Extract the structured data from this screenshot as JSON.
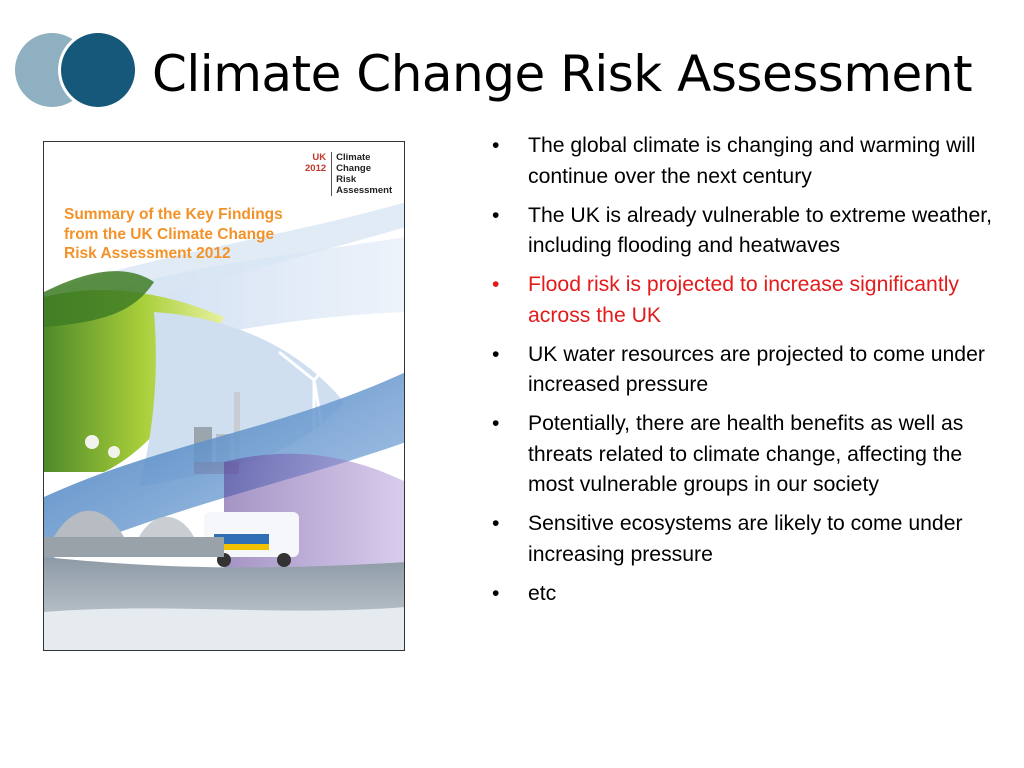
{
  "slide": {
    "title": "Climate Change Risk Assessment",
    "colors": {
      "logo_light": "#8fb0c0",
      "logo_dark": "#15587a",
      "highlight_red": "#e31b1b",
      "cover_orange": "#f29229"
    }
  },
  "cover": {
    "tag_left_line1": "UK",
    "tag_left_line2": "2012",
    "tag_right_line1": "Climate",
    "tag_right_line2": "Change",
    "tag_right_line3": "Risk",
    "tag_right_line4": "Assessment",
    "heading_line1": "Summary of the Key Findings",
    "heading_line2": "from the UK Climate Change",
    "heading_line3": "Risk Assessment 2012"
  },
  "bullets": [
    {
      "text": "The global climate is changing and warming will continue over the next century",
      "highlight": false
    },
    {
      "text": "The UK is already vulnerable to extreme weather, including flooding and heatwaves",
      "highlight": false
    },
    {
      "text": "Flood risk is projected to increase significantly across the UK",
      "highlight": true
    },
    {
      "text": "UK water resources are projected to come under increased pressure",
      "highlight": false
    },
    {
      "text": "Potentially, there are health benefits as well as threats related to climate change, affecting the most vulnerable groups in our society",
      "highlight": false
    },
    {
      "text": "Sensitive ecosystems are likely to come under increasing pressure",
      "highlight": false
    },
    {
      "text": "etc",
      "highlight": false
    }
  ]
}
